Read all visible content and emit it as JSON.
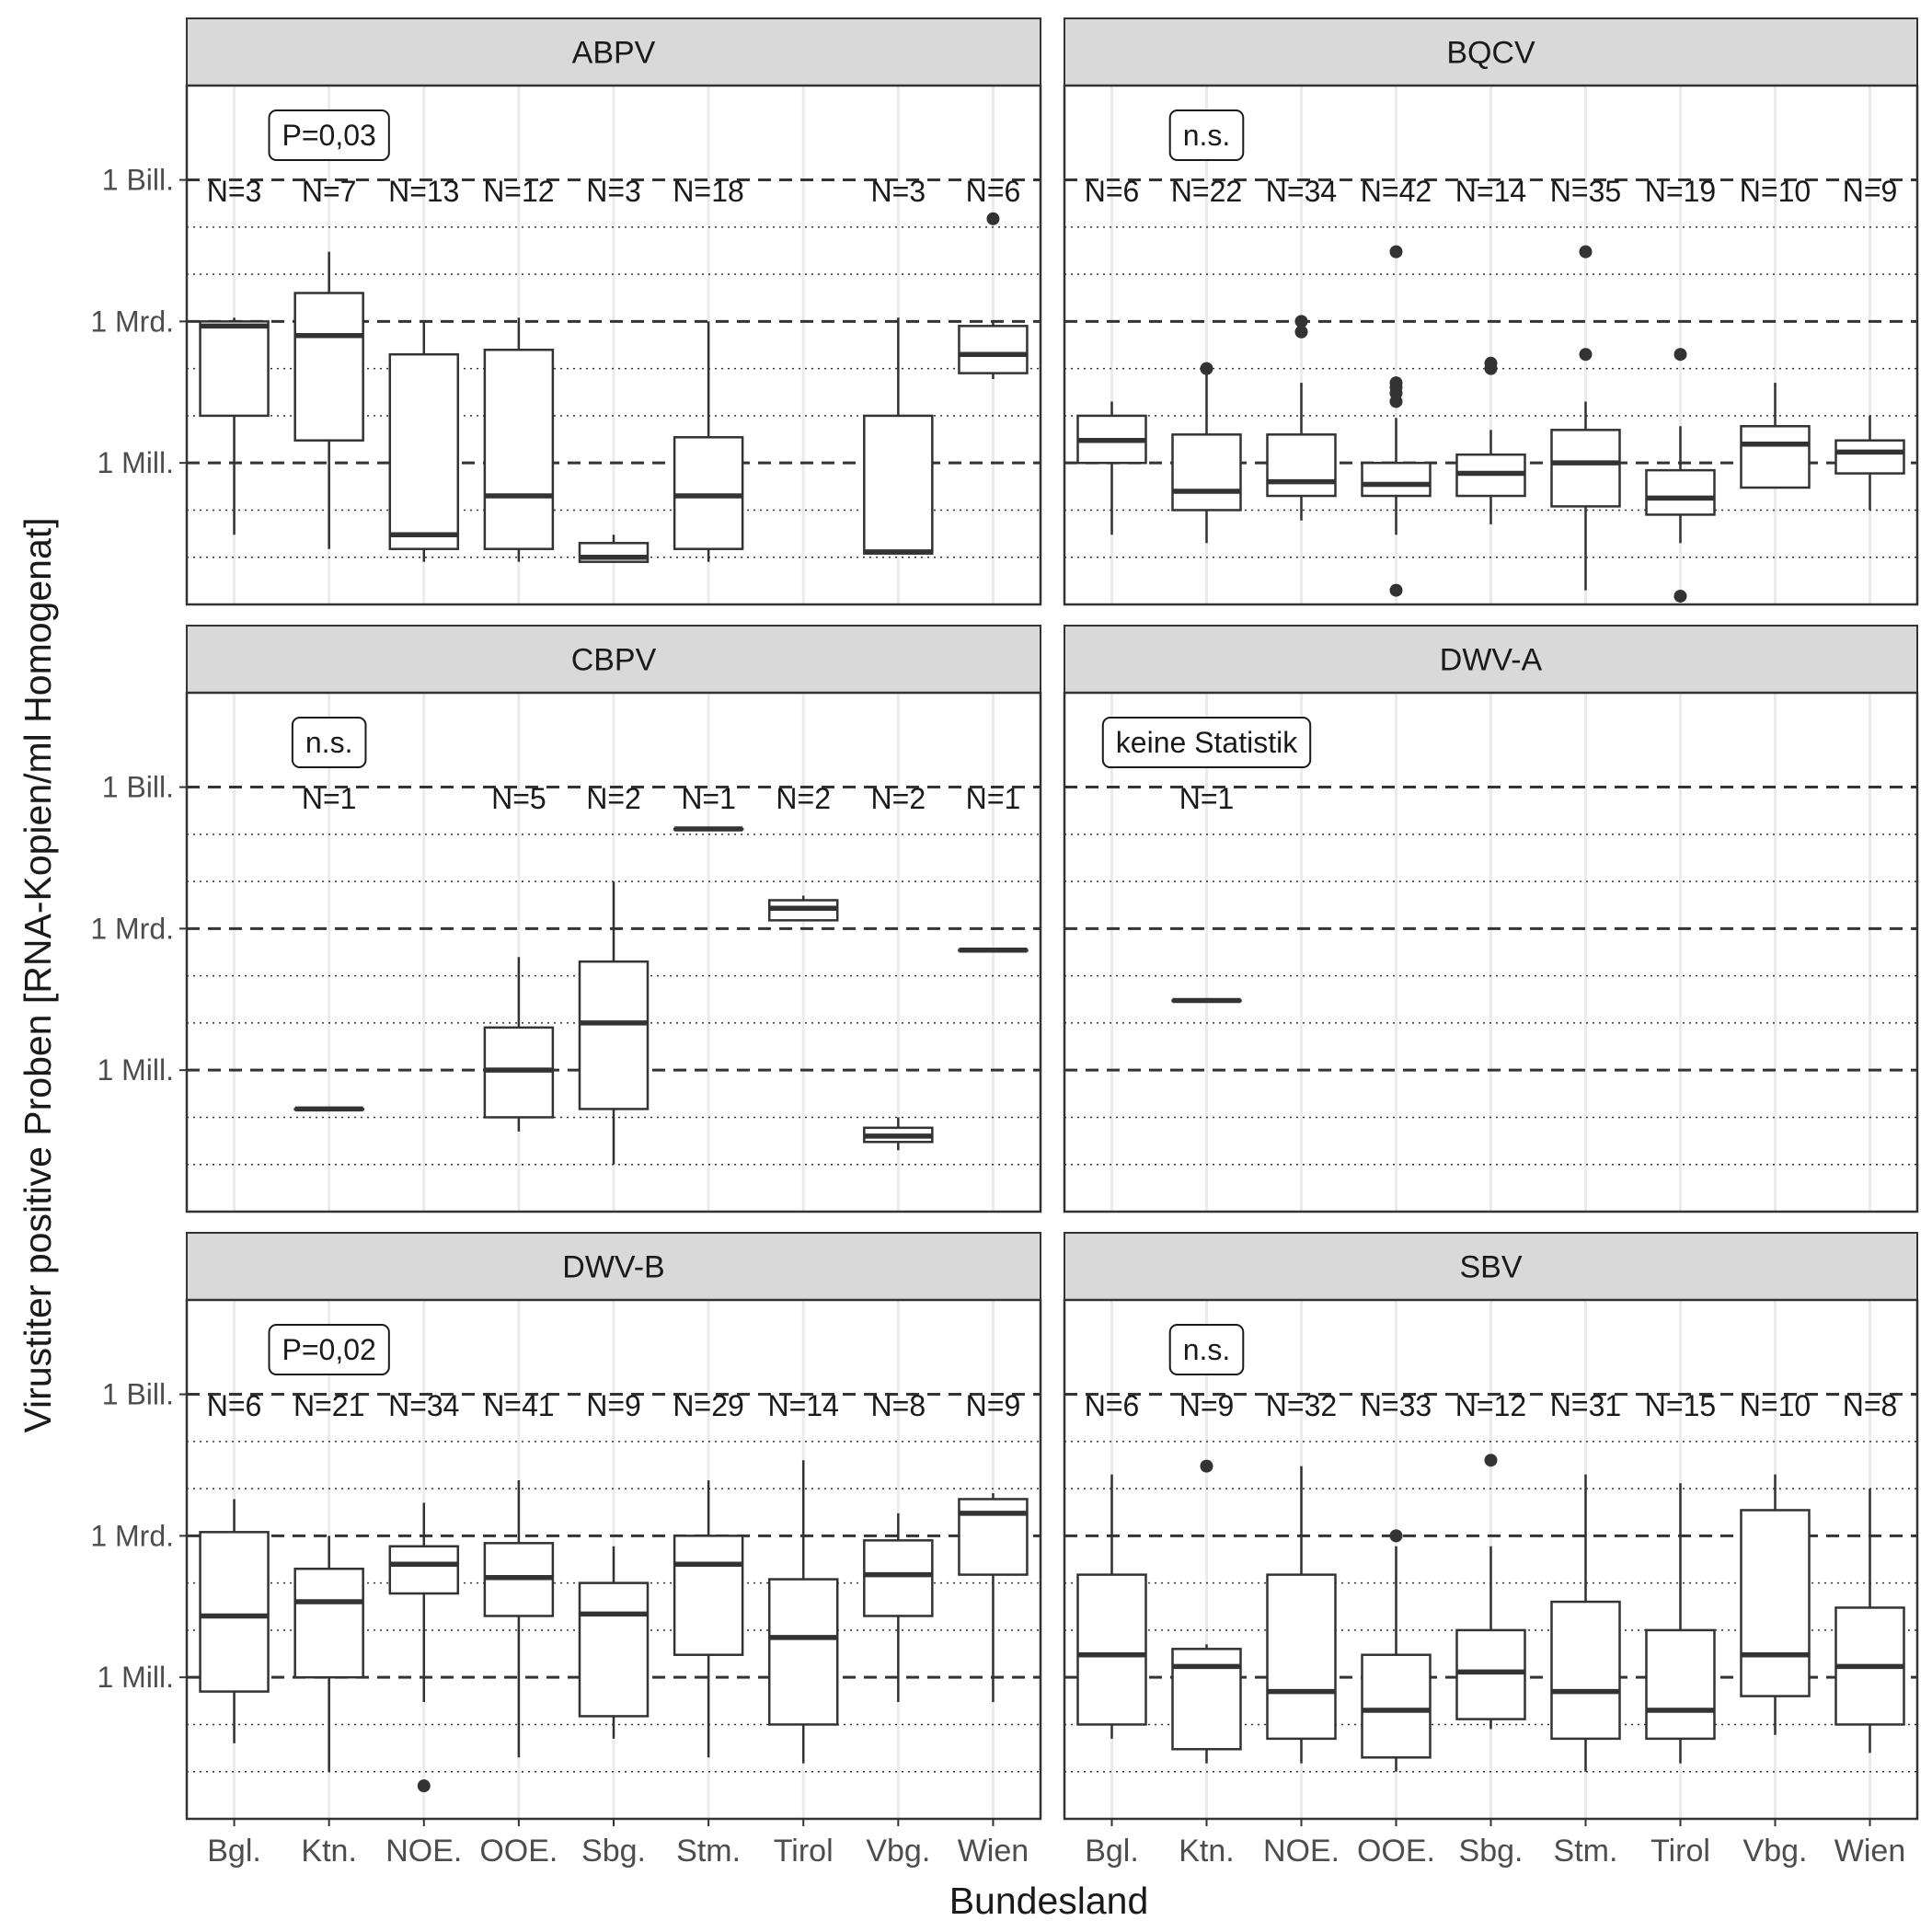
{
  "chart_data": {
    "type": "boxplot",
    "ylabel": "Virustiter positive Proben [RNA-Kopien/ml Homogenat]",
    "xlabel": "Bundesland",
    "y_scale": "log10",
    "ylim": [
      1000,
      100000000000000.0
    ],
    "y_major_ticks": [
      {
        "value": 1000000.0,
        "label": "1 Mill."
      },
      {
        "value": 1000000000.0,
        "label": "1 Mrd."
      },
      {
        "value": 1000000000000.0,
        "label": "1 Bill."
      }
    ],
    "y_minor_gridlines": [
      10000.0,
      100000.0,
      10000000.0,
      100000000.0,
      10000000000.0,
      100000000000.0
    ],
    "categories": [
      "Bgl.",
      "Ktn.",
      "NOE.",
      "OOE.",
      "Sbg.",
      "Stm.",
      "Tirol",
      "Vbg.",
      "Wien"
    ],
    "panels": [
      {
        "title": "ABPV",
        "test_label": "P=0,03",
        "n_labels": [
          "N=3",
          "N=7",
          "N=13",
          "N=12",
          "N=3",
          "N=18",
          "",
          "N=3",
          "N=6"
        ],
        "boxes": [
          {
            "category": "Bgl.",
            "min": 30000.0,
            "q1": 10000000.0,
            "median": 800000000.0,
            "q3": 1000000000.0,
            "max": 1200000000.0,
            "outliers": []
          },
          {
            "category": "Ktn.",
            "min": 15000.0,
            "q1": 3000000.0,
            "median": 500000000.0,
            "q3": 4000000000.0,
            "max": 30000000000.0,
            "outliers": []
          },
          {
            "category": "NOE.",
            "min": 8000.0,
            "q1": 15000.0,
            "median": 30000.0,
            "q3": 200000000.0,
            "max": 1000000000.0,
            "outliers": []
          },
          {
            "category": "OOE.",
            "min": 8000.0,
            "q1": 15000.0,
            "median": 200000.0,
            "q3": 250000000.0,
            "max": 1200000000.0,
            "outliers": []
          },
          {
            "category": "Sbg.",
            "min": 8000.0,
            "q1": 8000.0,
            "median": 10000.0,
            "q3": 20000.0,
            "max": 30000.0,
            "outliers": []
          },
          {
            "category": "Stm.",
            "min": 8000.0,
            "q1": 15000.0,
            "median": 200000.0,
            "q3": 3500000.0,
            "max": 1000000000.0,
            "outliers": []
          },
          {
            "category": "Vbg.",
            "min": 12000.0,
            "q1": 12000.0,
            "median": 13000.0,
            "q3": 10000000.0,
            "max": 1200000000.0,
            "outliers": []
          },
          {
            "category": "Wien",
            "min": 60000000.0,
            "q1": 80000000.0,
            "median": 200000000.0,
            "q3": 800000000.0,
            "max": 1000000000.0,
            "outliers": [
              150000000000.0
            ]
          }
        ]
      },
      {
        "title": "BQCV",
        "test_label": "n.s.",
        "n_labels": [
          "N=6",
          "N=22",
          "N=34",
          "N=42",
          "N=14",
          "N=35",
          "N=19",
          "N=10",
          "N=9"
        ],
        "boxes": [
          {
            "category": "Bgl.",
            "min": 30000.0,
            "q1": 1000000.0,
            "median": 3000000.0,
            "q3": 10000000.0,
            "max": 20000000.0,
            "outliers": []
          },
          {
            "category": "Ktn.",
            "min": 20000.0,
            "q1": 100000.0,
            "median": 250000.0,
            "q3": 4000000.0,
            "max": 80000000.0,
            "outliers": [
              100000000.0
            ]
          },
          {
            "category": "NOE.",
            "min": 60000.0,
            "q1": 200000.0,
            "median": 400000.0,
            "q3": 4000000.0,
            "max": 50000000.0,
            "outliers": [
              600000000.0,
              1000000000.0
            ]
          },
          {
            "category": "OOE.",
            "min": 30000.0,
            "q1": 200000.0,
            "median": 350000.0,
            "q3": 1000000.0,
            "max": 9000000.0,
            "outliers": [
              2000.0,
              20000000.0,
              30000000.0,
              40000000.0,
              50000000.0,
              30000000000.0
            ]
          },
          {
            "category": "Sbg.",
            "min": 50000.0,
            "q1": 200000.0,
            "median": 600000.0,
            "q3": 1500000.0,
            "max": 5000000.0,
            "outliers": [
              100000000.0,
              130000000.0
            ]
          },
          {
            "category": "Stm.",
            "min": 2000.0,
            "q1": 120000.0,
            "median": 1000000.0,
            "q3": 5000000.0,
            "max": 20000000.0,
            "outliers": [
              200000000.0,
              30000000000.0
            ]
          },
          {
            "category": "Tirol",
            "min": 20000.0,
            "q1": 80000.0,
            "median": 180000.0,
            "q3": 700000.0,
            "max": 6000000.0,
            "outliers": [
              1500.0,
              200000000.0
            ]
          },
          {
            "category": "Vbg.",
            "min": 300000.0,
            "q1": 300000.0,
            "median": 2500000.0,
            "q3": 6000000.0,
            "max": 50000000.0,
            "outliers": []
          },
          {
            "category": "Wien",
            "min": 100000.0,
            "q1": 600000.0,
            "median": 1700000.0,
            "q3": 3000000.0,
            "max": 10000000.0,
            "outliers": []
          }
        ]
      },
      {
        "title": "CBPV",
        "test_label": "n.s.",
        "n_labels": [
          "",
          "N=1",
          "",
          "N=5",
          "N=2",
          "N=1",
          "N=2",
          "N=2",
          "N=1"
        ],
        "boxes": [
          {
            "category": "Ktn.",
            "min": 150000.0,
            "q1": 150000.0,
            "median": 150000.0,
            "q3": 150000.0,
            "max": 150000.0,
            "outliers": []
          },
          {
            "category": "OOE.",
            "min": 50000.0,
            "q1": 100000.0,
            "median": 1000000.0,
            "q3": 8000000.0,
            "max": 250000000.0,
            "outliers": []
          },
          {
            "category": "Sbg.",
            "min": 10000.0,
            "q1": 150000.0,
            "median": 10000000.0,
            "q3": 200000000.0,
            "max": 10000000000.0,
            "outliers": []
          },
          {
            "category": "Stm.",
            "min": 130000000000.0,
            "q1": 130000000000.0,
            "median": 130000000000.0,
            "q3": 130000000000.0,
            "max": 130000000000.0,
            "outliers": []
          },
          {
            "category": "Tirol",
            "min": 1500000000.0,
            "q1": 1500000000.0,
            "median": 2700000000.0,
            "q3": 4000000000.0,
            "max": 5000000000.0,
            "outliers": []
          },
          {
            "category": "Vbg.",
            "min": 20000.0,
            "q1": 30000.0,
            "median": 40000.0,
            "q3": 60000.0,
            "max": 100000.0,
            "outliers": []
          },
          {
            "category": "Wien",
            "min": 350000000.0,
            "q1": 350000000.0,
            "median": 350000000.0,
            "q3": 350000000.0,
            "max": 350000000.0,
            "outliers": []
          }
        ]
      },
      {
        "title": "DWV-A",
        "test_label": "keine Statistik",
        "n_labels": [
          "",
          "N=1",
          "",
          "",
          "",
          "",
          "",
          "",
          ""
        ],
        "boxes": [
          {
            "category": "Ktn.",
            "min": 30000000.0,
            "q1": 30000000.0,
            "median": 30000000.0,
            "q3": 30000000.0,
            "max": 30000000.0,
            "outliers": []
          }
        ]
      },
      {
        "title": "DWV-B",
        "test_label": "P=0,02",
        "n_labels": [
          "N=6",
          "N=21",
          "N=34",
          "N=41",
          "N=9",
          "N=29",
          "N=14",
          "N=8",
          "N=9"
        ],
        "boxes": [
          {
            "category": "Bgl.",
            "min": 40000.0,
            "q1": 500000.0,
            "median": 20000000.0,
            "q3": 1200000000.0,
            "max": 6000000000.0,
            "outliers": []
          },
          {
            "category": "Ktn.",
            "min": 10000.0,
            "q1": 1000000.0,
            "median": 40000000.0,
            "q3": 200000000.0,
            "max": 1000000000.0,
            "outliers": []
          },
          {
            "category": "NOE.",
            "min": 300000.0,
            "q1": 60000000.0,
            "median": 250000000.0,
            "q3": 600000000.0,
            "max": 5000000000.0,
            "outliers": [
              5000.0
            ]
          },
          {
            "category": "OOE.",
            "min": 20000.0,
            "q1": 20000000.0,
            "median": 130000000.0,
            "q3": 700000000.0,
            "max": 15000000000.0,
            "outliers": []
          },
          {
            "category": "Sbg.",
            "min": 50000.0,
            "q1": 150000.0,
            "median": 22000000.0,
            "q3": 100000000.0,
            "max": 600000000.0,
            "outliers": []
          },
          {
            "category": "Stm.",
            "min": 20000.0,
            "q1": 3000000.0,
            "median": 250000000.0,
            "q3": 1000000000.0,
            "max": 15000000000.0,
            "outliers": []
          },
          {
            "category": "Tirol",
            "min": 15000.0,
            "q1": 100000.0,
            "median": 7000000.0,
            "q3": 120000000.0,
            "max": 40000000000.0,
            "outliers": []
          },
          {
            "category": "Vbg.",
            "min": 300000.0,
            "q1": 20000000.0,
            "median": 150000000.0,
            "q3": 800000000.0,
            "max": 3000000000.0,
            "outliers": []
          },
          {
            "category": "Wien",
            "min": 300000.0,
            "q1": 150000000.0,
            "median": 3000000000.0,
            "q3": 6000000000.0,
            "max": 8000000000.0,
            "outliers": []
          }
        ]
      },
      {
        "title": "SBV",
        "test_label": "n.s.",
        "n_labels": [
          "N=6",
          "N=9",
          "N=32",
          "N=33",
          "N=12",
          "N=31",
          "N=15",
          "N=10",
          "N=8"
        ],
        "boxes": [
          {
            "category": "Bgl.",
            "min": 50000.0,
            "q1": 100000.0,
            "median": 3000000.0,
            "q3": 150000000.0,
            "max": 20000000000.0,
            "outliers": []
          },
          {
            "category": "Ktn.",
            "min": 15000.0,
            "q1": 30000.0,
            "median": 1700000.0,
            "q3": 4000000.0,
            "max": 5000000.0,
            "outliers": [
              30000000000.0
            ]
          },
          {
            "category": "NOE.",
            "min": 15000.0,
            "q1": 50000.0,
            "median": 500000.0,
            "q3": 150000000.0,
            "max": 30000000000.0,
            "outliers": []
          },
          {
            "category": "OOE.",
            "min": 10000.0,
            "q1": 20000.0,
            "median": 200000.0,
            "q3": 3000000.0,
            "max": 600000000.0,
            "outliers": [
              1000000000.0
            ]
          },
          {
            "category": "Sbg.",
            "min": 80000.0,
            "q1": 130000.0,
            "median": 1300000.0,
            "q3": 10000000.0,
            "max": 600000000.0,
            "outliers": [
              40000000000.0
            ]
          },
          {
            "category": "Stm.",
            "min": 10000.0,
            "q1": 50000.0,
            "median": 500000.0,
            "q3": 40000000.0,
            "max": 20000000000.0,
            "outliers": []
          },
          {
            "category": "Tirol",
            "min": 15000.0,
            "q1": 50000.0,
            "median": 200000.0,
            "q3": 10000000.0,
            "max": 13000000000.0,
            "outliers": []
          },
          {
            "category": "Vbg.",
            "min": 60000.0,
            "q1": 400000.0,
            "median": 3000000.0,
            "q3": 3500000000.0,
            "max": 20000000000.0,
            "outliers": []
          },
          {
            "category": "Wien",
            "min": 25000.0,
            "q1": 100000.0,
            "median": 1700000.0,
            "q3": 30000000.0,
            "max": 10000000000.0,
            "outliers": []
          }
        ]
      }
    ]
  }
}
